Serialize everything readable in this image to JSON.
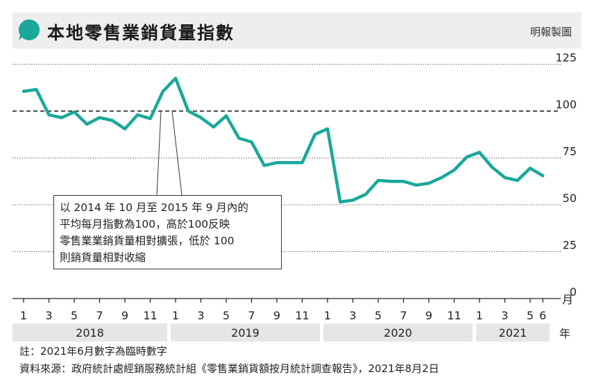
{
  "header": {
    "title": "本地零售業銷貨量指數",
    "credit": "明報製圖"
  },
  "callout": {
    "lines": [
      "以 2014 年 10 月至 2015 年 9 月內的",
      "平均每月指數為100，高於100反映",
      "零售業業銷貨量相對擴張，低於 100",
      "則銷貨量相對收縮"
    ]
  },
  "footer": {
    "note": "註：2021年6月數字為臨時數字",
    "source": "資料來源：政府統計處經銷服務統計組《零售業銷貨額按月統計調查報告》，2021年8月2日"
  },
  "colors": {
    "line": "#1aa89a",
    "year_band": "#e6e6e6",
    "header_bg": "#eeeeee"
  },
  "chart_data": {
    "type": "line",
    "title": "本地零售業銷貨量指數",
    "x_unit_month": "月",
    "x_unit_year": "年",
    "ylim": [
      0,
      125
    ],
    "y_ticks": [
      0,
      25,
      50,
      75,
      100,
      125
    ],
    "reference_line": 100,
    "grid": "dotted horizontal",
    "x_tick_labels": [
      "1",
      "3",
      "5",
      "7",
      "9",
      "11",
      "1",
      "3",
      "5",
      "7",
      "9",
      "11",
      "1",
      "3",
      "5",
      "7",
      "9",
      "11",
      "1",
      "3",
      "5",
      "6"
    ],
    "years": [
      "2018",
      "2019",
      "2020",
      "2021"
    ],
    "x": [
      "2018-01",
      "2018-02",
      "2018-03",
      "2018-04",
      "2018-05",
      "2018-06",
      "2018-07",
      "2018-08",
      "2018-09",
      "2018-10",
      "2018-11",
      "2018-12",
      "2019-01",
      "2019-02",
      "2019-03",
      "2019-04",
      "2019-05",
      "2019-06",
      "2019-07",
      "2019-08",
      "2019-09",
      "2019-10",
      "2019-11",
      "2019-12",
      "2020-01",
      "2020-02",
      "2020-03",
      "2020-04",
      "2020-05",
      "2020-06",
      "2020-07",
      "2020-08",
      "2020-09",
      "2020-10",
      "2020-11",
      "2020-12",
      "2021-01",
      "2021-02",
      "2021-03",
      "2021-04",
      "2021-05",
      "2021-06"
    ],
    "values": [
      110.5,
      111.5,
      98,
      96.5,
      99.5,
      93,
      96.5,
      95,
      90.5,
      98,
      96,
      110.5,
      117.5,
      100,
      96.5,
      91.5,
      97.5,
      85.5,
      83.5,
      71,
      72.5,
      72.5,
      72.5,
      87.5,
      90.5,
      51.5,
      52.5,
      55.5,
      63,
      62.5,
      62.5,
      60.5,
      61.5,
      64.5,
      68.5,
      75.5,
      78,
      70,
      64.5,
      63,
      69.5,
      65.5
    ]
  }
}
